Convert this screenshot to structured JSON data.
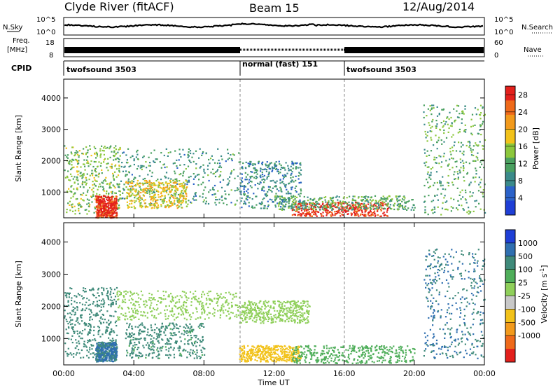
{
  "header": {
    "title": "Clyde River (fitACF)",
    "beam": "Beam 15",
    "date": "12/Aug/2014"
  },
  "noise_panel": {
    "left_label": "N.Sky",
    "left_ticks": [
      "10^5",
      "10^0"
    ],
    "right_label": "N.Search",
    "right_ticks": [
      "10^5",
      "10^0"
    ]
  },
  "freq_panel": {
    "left_label_1": "Freq.",
    "left_label_2": "[MHz]",
    "left_ticks": [
      "18",
      "8"
    ],
    "right_label": "Nave",
    "right_ticks": [
      "60",
      "0"
    ]
  },
  "cpid_panel": {
    "label": "CPID",
    "modes": [
      {
        "name": "twofsound 3503",
        "start_hour": 0,
        "end_hour": 10
      },
      {
        "name": "normal (fast) 151",
        "start_hour": 10,
        "end_hour": 16
      },
      {
        "name": "twofsound 3503",
        "start_hour": 16,
        "end_hour": 24
      }
    ]
  },
  "colors": {
    "power_scale": [
      "#1f3fd6",
      "#2b62c9",
      "#3a8a8a",
      "#4aa060",
      "#8cc73c",
      "#f2c21a",
      "#f29a1c",
      "#ef6a1a",
      "#e3201c"
    ],
    "velocity_scale": [
      "#1f3fd6",
      "#2f6fb0",
      "#3f8a7a",
      "#4fae5a",
      "#8fcf5a",
      "#c8c8c8",
      "#f2c21a",
      "#f29a1c",
      "#ef6a1a",
      "#e3201c"
    ]
  },
  "chart_data": [
    {
      "type": "heatmap",
      "panel": "power",
      "ylabel": "Slant Range [km]",
      "xlabel": "",
      "xlim": [
        0,
        24
      ],
      "ylim": [
        180,
        4600
      ],
      "yticks": [
        "1000",
        "2000",
        "3000",
        "4000"
      ],
      "colorbar": {
        "label": "Power [dB]",
        "ticks": [
          "4",
          "8",
          "12",
          "16",
          "20",
          "24",
          "28"
        ],
        "range": [
          0,
          30
        ]
      },
      "regions": [
        {
          "x": [
            0.0,
            3.2
          ],
          "y": [
            300,
            2500
          ],
          "value": 14
        },
        {
          "x": [
            1.8,
            3.0
          ],
          "y": [
            200,
            900
          ],
          "value": 28
        },
        {
          "x": [
            3.0,
            10.0
          ],
          "y": [
            600,
            2400
          ],
          "value": 10
        },
        {
          "x": [
            3.5,
            7.0
          ],
          "y": [
            500,
            1400
          ],
          "value": 18
        },
        {
          "x": [
            10.0,
            13.5
          ],
          "y": [
            500,
            2000
          ],
          "value": 9
        },
        {
          "x": [
            13.0,
            18.5
          ],
          "y": [
            250,
            700
          ],
          "value": 28
        },
        {
          "x": [
            12.0,
            20.0
          ],
          "y": [
            450,
            900
          ],
          "value": 12
        },
        {
          "x": [
            20.5,
            24.0
          ],
          "y": [
            300,
            3800
          ],
          "value": 12
        }
      ]
    },
    {
      "type": "heatmap",
      "panel": "velocity",
      "ylabel": "Slant Range [km]",
      "xlabel": "Time UT",
      "xlim": [
        0,
        24
      ],
      "ylim": [
        180,
        4600
      ],
      "xticks": [
        "00:00",
        "04:00",
        "08:00",
        "12:00",
        "16:00",
        "20:00",
        "00:00"
      ],
      "yticks": [
        "1000",
        "2000",
        "3000",
        "4000"
      ],
      "colorbar": {
        "label": "Velocity [m s^-1]",
        "ticks": [
          "1000",
          "500",
          "100",
          "25",
          "-25",
          "-100",
          "-500",
          "-1000"
        ]
      },
      "regions": [
        {
          "x": [
            0.0,
            3.0
          ],
          "y": [
            400,
            2600
          ],
          "value": 300
        },
        {
          "x": [
            1.8,
            3.0
          ],
          "y": [
            300,
            900
          ],
          "value": 600
        },
        {
          "x": [
            3.0,
            10.0
          ],
          "y": [
            1600,
            2500
          ],
          "value": 0
        },
        {
          "x": [
            3.5,
            8.0
          ],
          "y": [
            400,
            1500
          ],
          "value": 150
        },
        {
          "x": [
            10.0,
            14.0
          ],
          "y": [
            1500,
            2200
          ],
          "value": 0
        },
        {
          "x": [
            10.0,
            13.5
          ],
          "y": [
            300,
            800
          ],
          "value": -200
        },
        {
          "x": [
            13.0,
            20.0
          ],
          "y": [
            250,
            800
          ],
          "value": 60
        },
        {
          "x": [
            20.5,
            24.0
          ],
          "y": [
            400,
            3800
          ],
          "value": 500
        }
      ]
    }
  ]
}
